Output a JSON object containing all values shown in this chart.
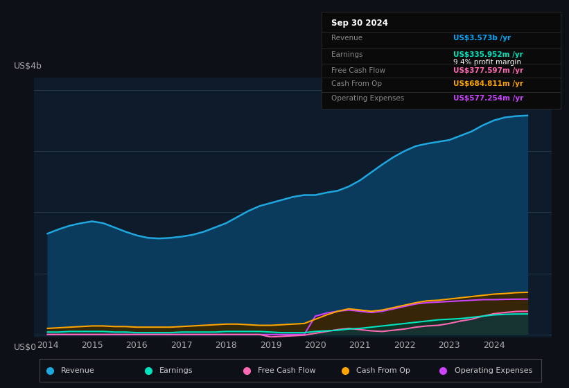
{
  "background_color": "#0d1117",
  "plot_bg_color": "#0d1b2a",
  "title_box": {
    "date": "Sep 30 2024",
    "rows": [
      {
        "label": "Revenue",
        "value": "US$3.573b /yr",
        "value_color": "#00aaff"
      },
      {
        "label": "Earnings",
        "value": "US$335.952m /yr",
        "value_color": "#00e5c0"
      },
      {
        "label": "",
        "value": "9.4% profit margin",
        "value_color": "#ffffff"
      },
      {
        "label": "Free Cash Flow",
        "value": "US$377.597m /yr",
        "value_color": "#ff69b4"
      },
      {
        "label": "Cash From Op",
        "value": "US$684.811m /yr",
        "value_color": "#ffa500"
      },
      {
        "label": "Operating Expenses",
        "value": "US$577.254m /yr",
        "value_color": "#cc44ff"
      }
    ]
  },
  "ylabel": "US$4b",
  "y0label": "US$0",
  "xlim": [
    2013.7,
    2025.3
  ],
  "ylim": [
    -50000000.0,
    4200000000.0
  ],
  "yticks": [
    0,
    1000000000.0,
    2000000000.0,
    3000000000.0,
    4000000000.0
  ],
  "xtick_labels": [
    "2014",
    "2015",
    "2016",
    "2017",
    "2018",
    "2019",
    "2020",
    "2021",
    "2022",
    "2023",
    "2024"
  ],
  "xtick_positions": [
    2014,
    2015,
    2016,
    2017,
    2018,
    2019,
    2020,
    2021,
    2022,
    2023,
    2024
  ],
  "series": {
    "revenue": {
      "color": "#1fa8e0",
      "fill_color": "#0a3a5c",
      "years": [
        2014.0,
        2014.25,
        2014.5,
        2014.75,
        2015.0,
        2015.25,
        2015.5,
        2015.75,
        2016.0,
        2016.25,
        2016.5,
        2016.75,
        2017.0,
        2017.25,
        2017.5,
        2017.75,
        2018.0,
        2018.25,
        2018.5,
        2018.75,
        2019.0,
        2019.25,
        2019.5,
        2019.75,
        2020.0,
        2020.25,
        2020.5,
        2020.75,
        2021.0,
        2021.25,
        2021.5,
        2021.75,
        2022.0,
        2022.25,
        2022.5,
        2022.75,
        2023.0,
        2023.25,
        2023.5,
        2023.75,
        2024.0,
        2024.25,
        2024.5,
        2024.75
      ],
      "values": [
        1650000000.0,
        1720000000.0,
        1780000000.0,
        1820000000.0,
        1850000000.0,
        1820000000.0,
        1750000000.0,
        1680000000.0,
        1620000000.0,
        1580000000.0,
        1570000000.0,
        1580000000.0,
        1600000000.0,
        1630000000.0,
        1680000000.0,
        1750000000.0,
        1820000000.0,
        1920000000.0,
        2020000000.0,
        2100000000.0,
        2150000000.0,
        2200000000.0,
        2250000000.0,
        2280000000.0,
        2280000000.0,
        2320000000.0,
        2350000000.0,
        2420000000.0,
        2520000000.0,
        2650000000.0,
        2780000000.0,
        2900000000.0,
        3000000000.0,
        3080000000.0,
        3120000000.0,
        3150000000.0,
        3180000000.0,
        3250000000.0,
        3320000000.0,
        3420000000.0,
        3500000000.0,
        3550000000.0,
        3570000000.0,
        3580000000.0
      ]
    },
    "earnings": {
      "color": "#00e5c0",
      "fill_color": "#003d35",
      "years": [
        2014.0,
        2014.25,
        2014.5,
        2014.75,
        2015.0,
        2015.25,
        2015.5,
        2015.75,
        2016.0,
        2016.25,
        2016.5,
        2016.75,
        2017.0,
        2017.25,
        2017.5,
        2017.75,
        2018.0,
        2018.25,
        2018.5,
        2018.75,
        2019.0,
        2019.25,
        2019.5,
        2019.75,
        2020.0,
        2020.25,
        2020.5,
        2020.75,
        2021.0,
        2021.25,
        2021.5,
        2021.75,
        2022.0,
        2022.25,
        2022.5,
        2022.75,
        2023.0,
        2023.25,
        2023.5,
        2023.75,
        2024.0,
        2024.25,
        2024.5,
        2024.75
      ],
      "values": [
        40000000.0,
        40000000.0,
        50000000.0,
        50000000.0,
        50000000.0,
        50000000.0,
        40000000.0,
        40000000.0,
        30000000.0,
        30000000.0,
        30000000.0,
        30000000.0,
        40000000.0,
        40000000.0,
        40000000.0,
        40000000.0,
        50000000.0,
        50000000.0,
        50000000.0,
        50000000.0,
        40000000.0,
        30000000.0,
        30000000.0,
        30000000.0,
        50000000.0,
        60000000.0,
        70000000.0,
        90000000.0,
        100000000.0,
        120000000.0,
        140000000.0,
        160000000.0,
        180000000.0,
        200000000.0,
        220000000.0,
        240000000.0,
        250000000.0,
        260000000.0,
        280000000.0,
        300000000.0,
        320000000.0,
        330000000.0,
        335000000.0,
        336000000.0
      ]
    },
    "free_cash_flow": {
      "color": "#ff69b4",
      "fill_color": "#5a1a3a",
      "years": [
        2014.0,
        2014.25,
        2014.5,
        2014.75,
        2015.0,
        2015.25,
        2015.5,
        2015.75,
        2016.0,
        2016.25,
        2016.5,
        2016.75,
        2017.0,
        2017.25,
        2017.5,
        2017.75,
        2018.0,
        2018.25,
        2018.5,
        2018.75,
        2019.0,
        2019.25,
        2019.5,
        2019.75,
        2020.0,
        2020.25,
        2020.5,
        2020.75,
        2021.0,
        2021.25,
        2021.5,
        2021.75,
        2022.0,
        2022.25,
        2022.5,
        2022.75,
        2023.0,
        2023.25,
        2023.5,
        2023.75,
        2024.0,
        2024.25,
        2024.5,
        2024.75
      ],
      "values": [
        0.0,
        0.0,
        0.0,
        0.0,
        0.0,
        0.0,
        0.0,
        0.0,
        0.0,
        0.0,
        0.0,
        0.0,
        0.0,
        0.0,
        0.0,
        0.0,
        0.0,
        0.0,
        0.0,
        0.0,
        -40000000.0,
        -30000000.0,
        -20000000.0,
        -10000000.0,
        20000000.0,
        50000000.0,
        80000000.0,
        100000000.0,
        80000000.0,
        60000000.0,
        50000000.0,
        70000000.0,
        90000000.0,
        120000000.0,
        140000000.0,
        150000000.0,
        180000000.0,
        220000000.0,
        250000000.0,
        300000000.0,
        340000000.0,
        360000000.0,
        377000000.0,
        380000000.0
      ]
    },
    "cash_from_op": {
      "color": "#ffa500",
      "fill_color": "#3a2800",
      "years": [
        2014.0,
        2014.25,
        2014.5,
        2014.75,
        2015.0,
        2015.25,
        2015.5,
        2015.75,
        2016.0,
        2016.25,
        2016.5,
        2016.75,
        2017.0,
        2017.25,
        2017.5,
        2017.75,
        2018.0,
        2018.25,
        2018.5,
        2018.75,
        2019.0,
        2019.25,
        2019.5,
        2019.75,
        2020.0,
        2020.25,
        2020.5,
        2020.75,
        2021.0,
        2021.25,
        2021.5,
        2021.75,
        2022.0,
        2022.25,
        2022.5,
        2022.75,
        2023.0,
        2023.25,
        2023.5,
        2023.75,
        2024.0,
        2024.25,
        2024.5,
        2024.75
      ],
      "values": [
        100000000.0,
        110000000.0,
        120000000.0,
        130000000.0,
        140000000.0,
        140000000.0,
        130000000.0,
        130000000.0,
        120000000.0,
        120000000.0,
        120000000.0,
        120000000.0,
        130000000.0,
        140000000.0,
        150000000.0,
        160000000.0,
        170000000.0,
        170000000.0,
        160000000.0,
        150000000.0,
        150000000.0,
        160000000.0,
        170000000.0,
        180000000.0,
        250000000.0,
        320000000.0,
        380000000.0,
        420000000.0,
        400000000.0,
        380000000.0,
        400000000.0,
        440000000.0,
        480000000.0,
        520000000.0,
        550000000.0,
        560000000.0,
        580000000.0,
        600000000.0,
        620000000.0,
        640000000.0,
        660000000.0,
        670000000.0,
        684000000.0,
        690000000.0
      ]
    },
    "operating_expenses": {
      "color": "#cc44ff",
      "fill_color": "#2a0a4a",
      "years": [
        2014.0,
        2014.25,
        2014.5,
        2014.75,
        2015.0,
        2015.25,
        2015.5,
        2015.75,
        2016.0,
        2016.25,
        2016.5,
        2016.75,
        2017.0,
        2017.25,
        2017.5,
        2017.75,
        2018.0,
        2018.25,
        2018.5,
        2018.75,
        2019.0,
        2019.25,
        2019.5,
        2019.75,
        2020.0,
        2020.25,
        2020.5,
        2020.75,
        2021.0,
        2021.25,
        2021.5,
        2021.75,
        2022.0,
        2022.25,
        2022.5,
        2022.75,
        2023.0,
        2023.25,
        2023.5,
        2023.75,
        2024.0,
        2024.25,
        2024.5,
        2024.75
      ],
      "values": [
        0.0,
        0.0,
        0.0,
        0.0,
        0.0,
        0.0,
        0.0,
        0.0,
        0.0,
        0.0,
        0.0,
        0.0,
        0.0,
        0.0,
        0.0,
        0.0,
        0.0,
        0.0,
        0.0,
        0.0,
        0.0,
        0.0,
        0.0,
        0.0,
        300000000.0,
        350000000.0,
        380000000.0,
        400000000.0,
        380000000.0,
        360000000.0,
        380000000.0,
        420000000.0,
        460000000.0,
        500000000.0,
        520000000.0,
        530000000.0,
        540000000.0,
        550000000.0,
        560000000.0,
        570000000.0,
        570000000.0,
        575000000.0,
        577000000.0,
        578000000.0
      ]
    }
  },
  "legend": [
    {
      "label": "Revenue",
      "color": "#1fa8e0"
    },
    {
      "label": "Earnings",
      "color": "#00e5c0"
    },
    {
      "label": "Free Cash Flow",
      "color": "#ff69b4"
    },
    {
      "label": "Cash From Op",
      "color": "#ffa500"
    },
    {
      "label": "Operating Expenses",
      "color": "#cc44ff"
    }
  ]
}
